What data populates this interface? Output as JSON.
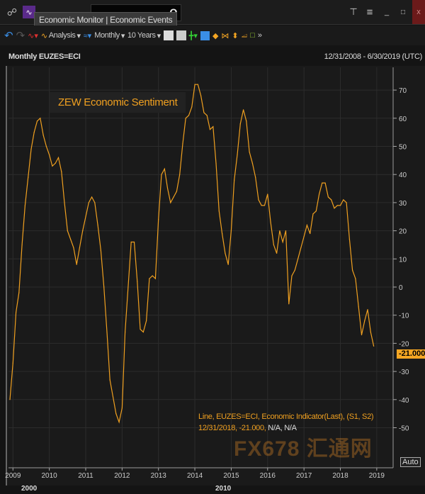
{
  "topbar": {
    "tooltip": "Economic Monitor | Economic Events",
    "search_icon": "Q",
    "buttons": [
      "tree-icon",
      "menu-icon",
      "minimize",
      "maximize",
      "close"
    ]
  },
  "toolbar": {
    "analysis": "Analysis",
    "period": "Monthly",
    "range": "10 Years"
  },
  "chart_header": {
    "title": "Monthly EUZES=ECI",
    "range": "12/31/2008 - 6/30/2019 (UTC)"
  },
  "annotation": "ZEW Economic Sentiment",
  "legend": {
    "line1": "Line, EUZES=ECI, Economic Indicator(Last), (S1, S2)",
    "line2_a": "12/31/2018, -21.000,",
    "line2_b": "N/A, N/A"
  },
  "last_value": "-21.000",
  "auto_label": "Auto",
  "bottom_labels": [
    "2000",
    "2010"
  ],
  "watermark": "FX678 汇通网",
  "colors": {
    "line": "#f0a020",
    "background": "#1a1a1a",
    "close": "#8b1a1a"
  },
  "chart_data": {
    "type": "line",
    "title": "ZEW Economic Sentiment",
    "ylim": [
      -58,
      76
    ],
    "yticks": [
      70,
      60,
      50,
      40,
      30,
      20,
      10,
      0,
      -10,
      -20,
      -30,
      -40,
      -50
    ],
    "xticks": [
      "2009",
      "2010",
      "2011",
      "2012",
      "2013",
      "2014",
      "2015",
      "2016",
      "2017",
      "2018",
      "2019"
    ],
    "grid": true,
    "axis_side": "right",
    "x": [
      "2008-12",
      "2009-01",
      "2009-02",
      "2009-03",
      "2009-04",
      "2009-05",
      "2009-06",
      "2009-07",
      "2009-08",
      "2009-09",
      "2009-10",
      "2009-11",
      "2009-12",
      "2010-01",
      "2010-02",
      "2010-03",
      "2010-04",
      "2010-05",
      "2010-06",
      "2010-07",
      "2010-08",
      "2010-09",
      "2010-10",
      "2010-11",
      "2010-12",
      "2011-01",
      "2011-02",
      "2011-03",
      "2011-04",
      "2011-05",
      "2011-06",
      "2011-07",
      "2011-08",
      "2011-09",
      "2011-10",
      "2011-11",
      "2011-12",
      "2012-01",
      "2012-02",
      "2012-03",
      "2012-04",
      "2012-05",
      "2012-06",
      "2012-07",
      "2012-08",
      "2012-09",
      "2012-10",
      "2012-11",
      "2012-12",
      "2013-01",
      "2013-02",
      "2013-03",
      "2013-04",
      "2013-05",
      "2013-06",
      "2013-07",
      "2013-08",
      "2013-09",
      "2013-10",
      "2013-11",
      "2013-12",
      "2014-01",
      "2014-02",
      "2014-03",
      "2014-04",
      "2014-05",
      "2014-06",
      "2014-07",
      "2014-08",
      "2014-09",
      "2014-10",
      "2014-11",
      "2014-12",
      "2015-01",
      "2015-02",
      "2015-03",
      "2015-04",
      "2015-05",
      "2015-06",
      "2015-07",
      "2015-08",
      "2015-09",
      "2015-10",
      "2015-11",
      "2015-12",
      "2016-01",
      "2016-02",
      "2016-03",
      "2016-04",
      "2016-05",
      "2016-06",
      "2016-07",
      "2016-08",
      "2016-09",
      "2016-10",
      "2016-11",
      "2016-12",
      "2017-01",
      "2017-02",
      "2017-03",
      "2017-04",
      "2017-05",
      "2017-06",
      "2017-07",
      "2017-08",
      "2017-09",
      "2017-10",
      "2017-11",
      "2017-12",
      "2018-01",
      "2018-02",
      "2018-03",
      "2018-04",
      "2018-05",
      "2018-06",
      "2018-07",
      "2018-08",
      "2018-09",
      "2018-10",
      "2018-11",
      "2018-12"
    ],
    "values": [
      -40,
      -27,
      -9,
      -2,
      15,
      29,
      39,
      49,
      55,
      59,
      60,
      54,
      50,
      47,
      43,
      44,
      46,
      41,
      30,
      20,
      17,
      14,
      8,
      14,
      20,
      25,
      30,
      32,
      30,
      22,
      13,
      0,
      -16,
      -33,
      -39,
      -45,
      -48,
      -43,
      -16,
      0,
      16,
      16,
      2,
      -15,
      -16,
      -12,
      3,
      4,
      3,
      24,
      40,
      42,
      35,
      30,
      32,
      34,
      40,
      51,
      60,
      61,
      64,
      72,
      72,
      68,
      62,
      61,
      56,
      57,
      44,
      27,
      19,
      12,
      8,
      20,
      38,
      47,
      58,
      63,
      59,
      48,
      44,
      39,
      31,
      29,
      29,
      33,
      23,
      15,
      12,
      20,
      16,
      20,
      -6,
      4,
      6,
      10,
      14,
      18,
      22,
      19,
      26,
      27,
      33,
      37,
      37,
      32,
      31,
      28,
      29,
      29,
      31,
      30,
      17,
      6,
      3,
      -7,
      -17,
      -12,
      -8,
      -16,
      -21
    ]
  }
}
